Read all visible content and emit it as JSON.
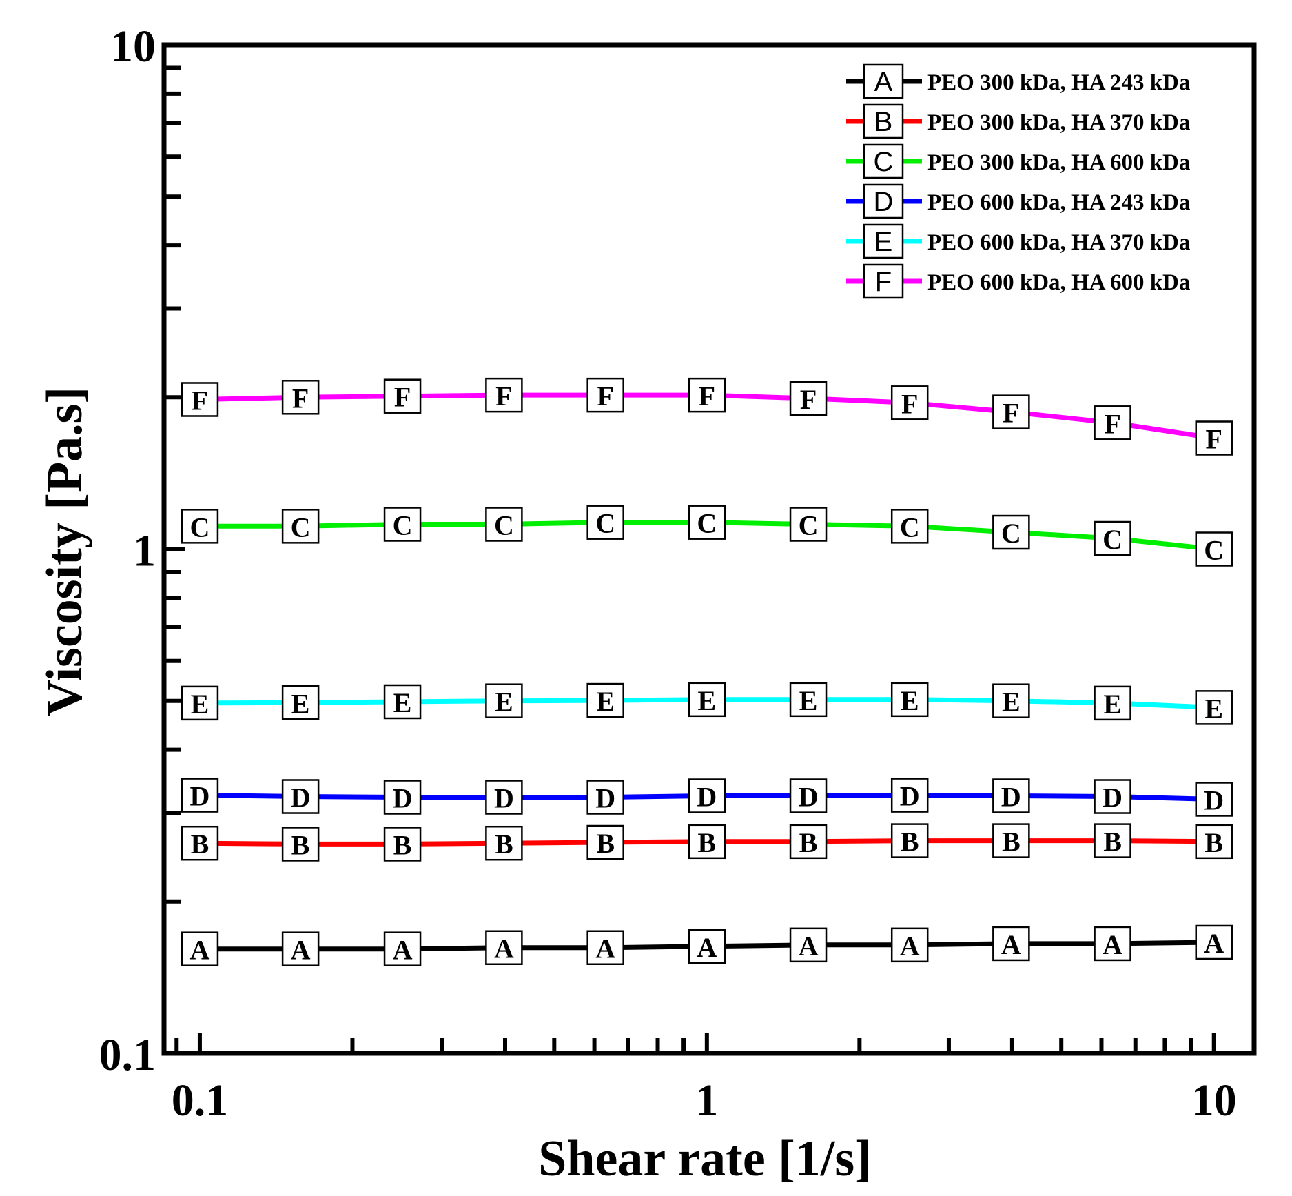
{
  "chart_data": {
    "type": "line",
    "xlabel": "Shear rate [1/s]",
    "ylabel": "Viscosity [Pa.s]",
    "xscale": "log",
    "yscale": "log",
    "xlim": [
      0.085,
      12
    ],
    "ylim": [
      0.1,
      10
    ],
    "xticks": [
      0.1,
      1,
      10
    ],
    "xtick_labels": [
      "0.1",
      "1",
      "10"
    ],
    "yticks": [
      0.1,
      1,
      10
    ],
    "ytick_labels": [
      "0.1",
      "1",
      "10"
    ],
    "legend_position": "top-right",
    "x": [
      0.1,
      0.158,
      0.251,
      0.398,
      0.631,
      1.0,
      1.585,
      2.512,
      3.981,
      6.31,
      10.0
    ],
    "series": [
      {
        "marker": "A",
        "name": "PEO 300 kDa, HA 243 kDa",
        "color": "#000000",
        "values": [
          0.161,
          0.161,
          0.161,
          0.162,
          0.162,
          0.163,
          0.164,
          0.164,
          0.165,
          0.165,
          0.166
        ]
      },
      {
        "marker": "B",
        "name": "PEO 300 kDa, HA 370 kDa",
        "color": "#ff0000",
        "values": [
          0.261,
          0.26,
          0.26,
          0.261,
          0.262,
          0.263,
          0.263,
          0.264,
          0.264,
          0.264,
          0.263
        ]
      },
      {
        "marker": "C",
        "name": "PEO 300 kDa, HA 600 kDa",
        "color": "#00ee00",
        "values": [
          1.11,
          1.11,
          1.12,
          1.12,
          1.13,
          1.13,
          1.12,
          1.11,
          1.08,
          1.05,
          1.0
        ]
      },
      {
        "marker": "D",
        "name": "PEO 600 kDa, HA 243 kDa",
        "color": "#0000ff",
        "values": [
          0.325,
          0.323,
          0.322,
          0.322,
          0.322,
          0.324,
          0.324,
          0.325,
          0.324,
          0.323,
          0.319
        ]
      },
      {
        "marker": "E",
        "name": "PEO 600 kDa, HA 370 kDa",
        "color": "#00ffff",
        "values": [
          0.495,
          0.496,
          0.498,
          0.5,
          0.501,
          0.503,
          0.503,
          0.503,
          0.5,
          0.495,
          0.485
        ]
      },
      {
        "marker": "F",
        "name": "PEO 600 kDa, HA 600 kDa",
        "color": "#ff00ff",
        "values": [
          1.98,
          2.0,
          2.01,
          2.02,
          2.02,
          2.02,
          1.99,
          1.95,
          1.87,
          1.78,
          1.66
        ]
      }
    ]
  }
}
